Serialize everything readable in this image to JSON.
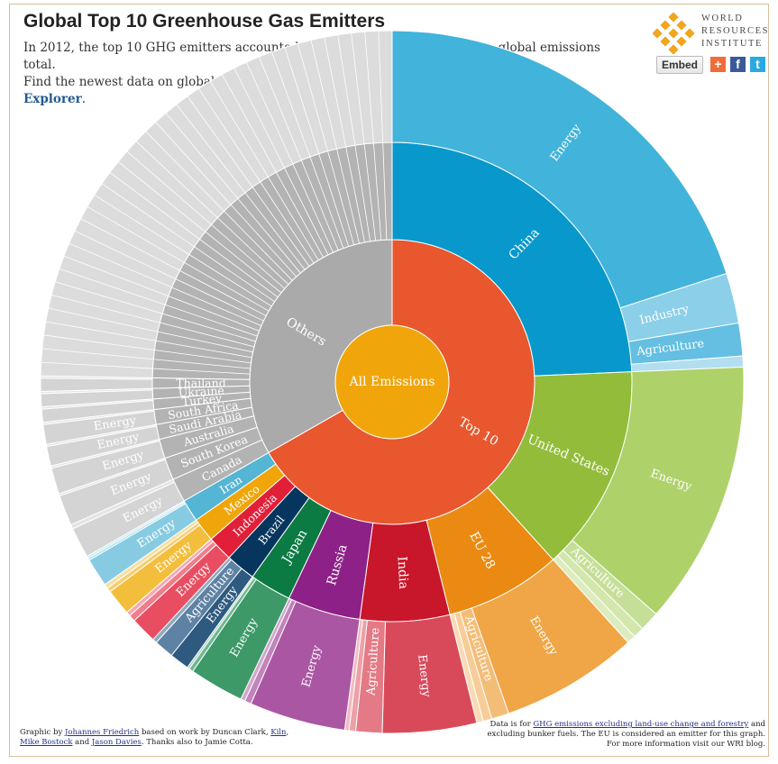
{
  "header": {
    "title": "Global Top 10 Greenhouse Gas Emitters",
    "subtitle_line1": "In 2012, the top 10 GHG emitters accounted for more than two thirds of the global emissions total.",
    "subtitle_line2_prefix": "Find the newest data on global greenhouse gas emissions on the ",
    "subtitle_link": "CAIT Climate Data Explorer",
    "subtitle_line2_suffix": "."
  },
  "logo": {
    "line1": "WORLD",
    "line2": "RESOURCES",
    "line3": "INSTITUTE"
  },
  "toolbar": {
    "embed_label": "Embed",
    "plus_icon": "+",
    "facebook_icon": "f",
    "twitter_icon": "t"
  },
  "footer": {
    "left_prefix": "Graphic by ",
    "left_link1": "Johannes Friedrich",
    "left_mid1": " based on work by Duncan Clark, ",
    "left_link2": "Kiln",
    "left_mid2": ",",
    "left_link3": "Mike Bostock",
    "left_mid3": " and ",
    "left_link4": "Jason Davies",
    "left_suffix": ". Thanks also to Jamie Cotta.",
    "right_prefix": "Data is for ",
    "right_link": "GHG emissions excluding land-use change and forestry",
    "right_mid": " and",
    "right_line2": "excluding bunker fuels. The EU is considered an emitter for this graph.",
    "right_line3": "For more information visit our WRI blog."
  },
  "chart_data": {
    "type": "sunburst",
    "root": "All Emissions",
    "units": "share of global emissions (%)",
    "groups": [
      {
        "name": "Top 10",
        "color": "#e8572e",
        "countries": [
          {
            "name": "China",
            "color": "#0898cc",
            "sectors": [
              {
                "name": "Energy",
                "value": 19.9,
                "color": "#42b3da"
              },
              {
                "name": "Industry",
                "value": 2.3,
                "color": "#8ccfe8"
              },
              {
                "name": "Agriculture",
                "value": 1.5,
                "color": "#64bfe2"
              },
              {
                "name": "",
                "value": 0.5,
                "color": "#b2def0"
              }
            ]
          },
          {
            "name": "United States",
            "color": "#93bc3b",
            "sectors": [
              {
                "name": "Energy",
                "value": 12.1,
                "color": "#aed16a"
              },
              {
                "name": "Agriculture",
                "value": 0.9,
                "color": "#c5df98"
              },
              {
                "name": "",
                "value": 0.5,
                "color": "#d3e7ad"
              },
              {
                "name": "",
                "value": 0.4,
                "color": "#dcecbf"
              }
            ]
          },
          {
            "name": "EU 28",
            "color": "#ea8a12",
            "sectors": [
              {
                "name": "Energy",
                "value": 6.3,
                "color": "#f0a646"
              },
              {
                "name": "Agriculture",
                "value": 0.8,
                "color": "#f3bd78"
              },
              {
                "name": "",
                "value": 0.4,
                "color": "#f6cd98"
              },
              {
                "name": "",
                "value": 0.3,
                "color": "#f8dbb5"
              }
            ]
          },
          {
            "name": "India",
            "color": "#c8172a",
            "sectors": [
              {
                "name": "Energy",
                "value": 4.3,
                "color": "#d84a5a"
              },
              {
                "name": "Agriculture",
                "value": 1.2,
                "color": "#e37a85"
              },
              {
                "name": "",
                "value": 0.3,
                "color": "#eca0a8"
              },
              {
                "name": "",
                "value": 0.2,
                "color": "#f2bcc1"
              }
            ]
          },
          {
            "name": "Russia",
            "color": "#8e2187",
            "sectors": [
              {
                "name": "Energy",
                "value": 4.4,
                "color": "#ab56a3"
              },
              {
                "name": "",
                "value": 0.3,
                "color": "#c084ba"
              },
              {
                "name": "",
                "value": 0.2,
                "color": "#d2a7ce"
              }
            ]
          },
          {
            "name": "Japan",
            "color": "#0b7a43",
            "sectors": [
              {
                "name": "Energy",
                "value": 2.5,
                "color": "#3d9968"
              },
              {
                "name": "",
                "value": 0.2,
                "color": "#72b792"
              },
              {
                "name": "",
                "value": 0.1,
                "color": "#a6d2ba"
              }
            ]
          },
          {
            "name": "Brazil",
            "color": "#06365e",
            "sectors": [
              {
                "name": "Energy",
                "value": 0.9,
                "color": "#2e5a80"
              },
              {
                "name": "Agriculture",
                "value": 0.9,
                "color": "#5e82a3"
              },
              {
                "name": "",
                "value": 0.2,
                "color": "#8fa9c1"
              }
            ]
          },
          {
            "name": "Indonesia",
            "color": "#e11f38",
            "sectors": [
              {
                "name": "Energy",
                "value": 1.2,
                "color": "#e94d61"
              },
              {
                "name": "",
                "value": 0.3,
                "color": "#ef7d8c"
              },
              {
                "name": "",
                "value": 0.2,
                "color": "#f5aab3"
              }
            ]
          },
          {
            "name": "Mexico",
            "color": "#f0a60a",
            "sectors": [
              {
                "name": "Energy",
                "value": 1.2,
                "color": "#f3be3c"
              },
              {
                "name": "",
                "value": 0.2,
                "color": "#f6cf72"
              },
              {
                "name": "",
                "value": 0.2,
                "color": "#f9dfa5"
              }
            ]
          },
          {
            "name": "Iran",
            "color": "#54b5d4",
            "sectors": [
              {
                "name": "Energy",
                "value": 1.3,
                "color": "#86cbe2"
              },
              {
                "name": "",
                "value": 0.1,
                "color": "#a9dbeb"
              },
              {
                "name": "",
                "value": 0.1,
                "color": "#c8e8f2"
              }
            ]
          }
        ]
      },
      {
        "name": "Others",
        "color": "#aaaaaa",
        "countries": [
          {
            "name": "Canada",
            "color": "#b3b3b3",
            "sectors": [
              {
                "name": "Energy",
                "value": 1.4,
                "color": "#d4d4d4"
              },
              {
                "name": "",
                "value": 0.2,
                "color": "#e4e4e4"
              }
            ]
          },
          {
            "name": "South Korea",
            "color": "#b3b3b3",
            "sectors": [
              {
                "name": "Energy",
                "value": 1.4,
                "color": "#d4d4d4"
              },
              {
                "name": "",
                "value": 0.1,
                "color": "#e4e4e4"
              }
            ]
          },
          {
            "name": "Australia",
            "color": "#b3b3b3",
            "sectors": [
              {
                "name": "Energy",
                "value": 1.2,
                "color": "#d4d4d4"
              },
              {
                "name": "",
                "value": 0.1,
                "color": "#e4e4e4"
              }
            ]
          },
          {
            "name": "Saudi Arabia",
            "color": "#b3b3b3",
            "sectors": [
              {
                "name": "Energy",
                "value": 0.9,
                "color": "#d4d4d4"
              },
              {
                "name": "",
                "value": 0.1,
                "color": "#e4e4e4"
              }
            ]
          },
          {
            "name": "South Africa",
            "color": "#b3b3b3",
            "sectors": [
              {
                "name": "Energy",
                "value": 0.9,
                "color": "#d4d4d4"
              },
              {
                "name": "",
                "value": 0.1,
                "color": "#e4e4e4"
              }
            ]
          },
          {
            "name": "Turkey",
            "color": "#b3b3b3",
            "sectors": [
              {
                "name": "",
                "value": 0.6,
                "color": "#d4d4d4"
              },
              {
                "name": "",
                "value": 0.1,
                "color": "#e4e4e4"
              }
            ]
          },
          {
            "name": "Ukraine",
            "color": "#b3b3b3",
            "sectors": [
              {
                "name": "",
                "value": 0.6,
                "color": "#d4d4d4"
              },
              {
                "name": "",
                "value": 0.1,
                "color": "#e4e4e4"
              }
            ]
          },
          {
            "name": "Thailand",
            "color": "#b3b3b3",
            "sectors": [
              {
                "name": "",
                "value": 0.6,
                "color": "#d4d4d4"
              },
              {
                "name": "",
                "value": 0.1,
                "color": "#e4e4e4"
              }
            ]
          },
          {
            "name": "",
            "color": "#b3b3b3",
            "sectors": [
              {
                "name": "",
                "value": 24.6,
                "color": "#dcdcdc"
              }
            ]
          }
        ]
      }
    ]
  }
}
